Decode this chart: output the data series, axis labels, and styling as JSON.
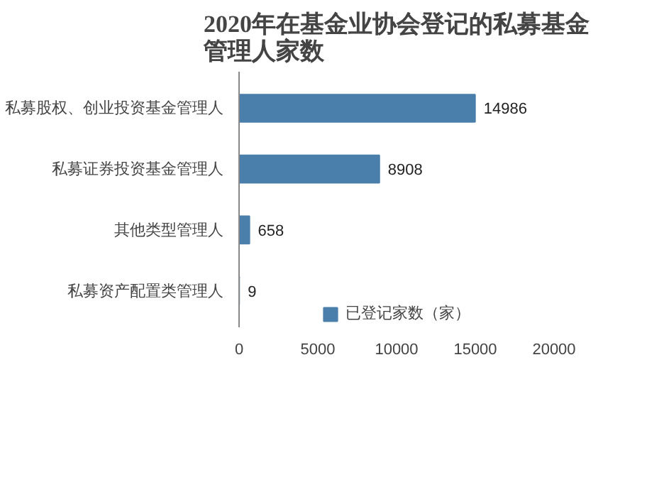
{
  "chart_data": {
    "type": "bar",
    "orientation": "horizontal",
    "title": "2020年在基金业协会登记的私募基金管理人家数",
    "categories": [
      "私募股权、创业投资基金管理人",
      "私募证券投资基金管理人",
      "其他类型管理人",
      "私募资产配置类管理人"
    ],
    "series": [
      {
        "name": "已登记家数（家）",
        "color": "#4a7eab",
        "values": [
          14986,
          8908,
          658,
          9
        ]
      }
    ],
    "xlim": [
      0,
      20000
    ],
    "xticks": [
      0,
      5000,
      10000,
      15000,
      20000
    ],
    "data_labels": true,
    "legend": "bottom",
    "grid": false
  }
}
